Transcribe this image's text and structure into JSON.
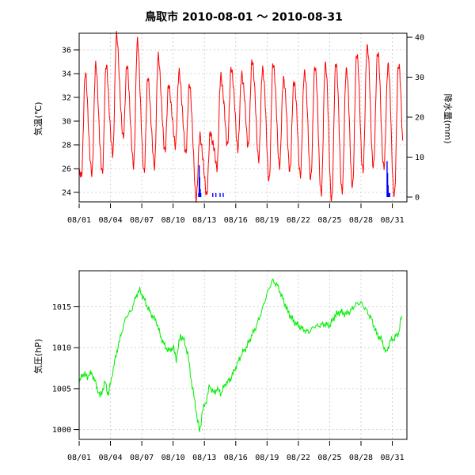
{
  "title": "鳥取市 2010-08-01 ～ 2010-08-31",
  "colors": {
    "temperature": "#ff0000",
    "precipitation": "#0000ff",
    "pressure": "#00ee00",
    "grid": "#c8c8c8"
  },
  "chart_data": [
    {
      "type": "line",
      "ylabel": "気温(℃)",
      "y2label": "降水量(mm)",
      "ylim": [
        23.2,
        37.4
      ],
      "yticks": [
        24,
        26,
        28,
        30,
        32,
        34,
        36
      ],
      "y2lim": [
        -1.2,
        41
      ],
      "y2ticks": [
        0,
        10,
        20,
        30,
        40
      ],
      "xlim": [
        0,
        31.4
      ],
      "xticks": [
        0,
        3,
        6,
        9,
        12,
        15,
        18,
        21,
        24,
        27,
        30
      ],
      "xticklabels": [
        "08/01",
        "08/04",
        "08/07",
        "08/10",
        "08/13",
        "08/16",
        "08/19",
        "08/22",
        "08/25",
        "08/28",
        "08/31"
      ],
      "grid": true,
      "series": [
        {
          "key": "temperature",
          "daily_min": [
            25.3,
            25.5,
            25.6,
            27.2,
            28.7,
            26.3,
            25.8,
            26.3,
            27.6,
            28.1,
            27.5,
            23.7,
            24.0,
            26.3,
            28.2,
            27.9,
            28.1,
            27.0,
            25.2,
            26.4,
            26.0,
            25.6,
            25.3,
            24.0,
            23.4,
            24.1,
            24.5,
            25.8,
            26.1,
            26.0,
            23.6,
            26.1
          ],
          "daily_max": [
            33.8,
            34.5,
            34.5,
            37.0,
            34.5,
            36.5,
            33.5,
            35.3,
            32.9,
            34.0,
            33.0,
            28.7,
            29.0,
            33.8,
            34.5,
            34.0,
            35.2,
            34.5,
            35.0,
            33.7,
            33.5,
            34.3,
            34.8,
            35.0,
            35.1,
            34.5,
            35.8,
            36.4,
            35.9,
            34.8,
            34.8,
            26.1
          ]
        },
        {
          "key": "precipitation",
          "values": [
            [
              11.45,
              1
            ],
            [
              11.5,
              8
            ],
            [
              11.55,
              5
            ],
            [
              11.6,
              2
            ],
            [
              11.65,
              1
            ],
            [
              12.8,
              1
            ],
            [
              13.1,
              1
            ],
            [
              13.5,
              1
            ],
            [
              13.8,
              1
            ],
            [
              29.5,
              9
            ],
            [
              29.55,
              6
            ],
            [
              29.6,
              3
            ],
            [
              29.65,
              1
            ],
            [
              29.7,
              1
            ],
            [
              29.75,
              1
            ]
          ]
        }
      ]
    },
    {
      "type": "line",
      "ylabel": "気圧(hP)",
      "ylim": [
        998.8,
        1019.4
      ],
      "yticks": [
        1000,
        1005,
        1010,
        1015
      ],
      "xlim": [
        0,
        31.4
      ],
      "xticks": [
        0,
        3,
        6,
        9,
        12,
        15,
        18,
        21,
        24,
        27,
        30
      ],
      "xticklabels": [
        "08/01",
        "08/04",
        "08/07",
        "08/10",
        "08/13",
        "08/16",
        "08/19",
        "08/22",
        "08/25",
        "08/28",
        "08/31"
      ],
      "grid": true,
      "series": [
        {
          "key": "pressure",
          "values": [
            [
              0,
              1005.6
            ],
            [
              0.3,
              1006.8
            ],
            [
              0.8,
              1006.5
            ],
            [
              1.2,
              1006.9
            ],
            [
              1.6,
              1005.6
            ],
            [
              2.0,
              1004.0
            ],
            [
              2.5,
              1005.8
            ],
            [
              2.8,
              1004.2
            ],
            [
              3.2,
              1007.0
            ],
            [
              3.6,
              1009.5
            ],
            [
              4.0,
              1011.5
            ],
            [
              4.5,
              1013.8
            ],
            [
              5.0,
              1014.5
            ],
            [
              5.5,
              1016.5
            ],
            [
              5.8,
              1017.0
            ],
            [
              6.2,
              1016.0
            ],
            [
              6.6,
              1014.8
            ],
            [
              7.0,
              1013.9
            ],
            [
              7.4,
              1013.2
            ],
            [
              7.8,
              1011.4
            ],
            [
              8.2,
              1010.2
            ],
            [
              8.6,
              1009.6
            ],
            [
              9.0,
              1010.1
            ],
            [
              9.3,
              1008.6
            ],
            [
              9.7,
              1011.5
            ],
            [
              10.0,
              1011.0
            ],
            [
              10.4,
              1009.3
            ],
            [
              10.7,
              1006.4
            ],
            [
              11.0,
              1004.0
            ],
            [
              11.3,
              1001.5
            ],
            [
              11.55,
              999.7
            ],
            [
              11.8,
              1002.2
            ],
            [
              12.2,
              1003.6
            ],
            [
              12.5,
              1005.4
            ],
            [
              12.9,
              1004.4
            ],
            [
              13.2,
              1005.0
            ],
            [
              13.6,
              1004.4
            ],
            [
              14.0,
              1005.6
            ],
            [
              14.4,
              1006.0
            ],
            [
              14.8,
              1007.0
            ],
            [
              15.2,
              1008.2
            ],
            [
              15.6,
              1009.3
            ],
            [
              16.0,
              1010.0
            ],
            [
              16.5,
              1011.4
            ],
            [
              17.0,
              1012.7
            ],
            [
              17.5,
              1014.5
            ],
            [
              18.0,
              1016.6
            ],
            [
              18.5,
              1018.2
            ],
            [
              19.0,
              1017.6
            ],
            [
              19.5,
              1016.0
            ],
            [
              20.0,
              1014.4
            ],
            [
              20.5,
              1013.3
            ],
            [
              21.0,
              1012.7
            ],
            [
              21.5,
              1012.2
            ],
            [
              22.0,
              1011.9
            ],
            [
              22.5,
              1012.6
            ],
            [
              23.0,
              1012.7
            ],
            [
              23.5,
              1012.9
            ],
            [
              24.0,
              1012.7
            ],
            [
              24.5,
              1013.9
            ],
            [
              25.0,
              1014.4
            ],
            [
              25.5,
              1014.1
            ],
            [
              26.0,
              1014.5
            ],
            [
              26.5,
              1015.3
            ],
            [
              27.0,
              1015.5
            ],
            [
              27.5,
              1014.6
            ],
            [
              28.0,
              1013.5
            ],
            [
              28.5,
              1011.7
            ],
            [
              29.0,
              1010.9
            ],
            [
              29.4,
              1009.3
            ],
            [
              29.8,
              1010.8
            ],
            [
              30.2,
              1011.2
            ],
            [
              30.6,
              1011.8
            ],
            [
              30.9,
              1013.9
            ]
          ]
        }
      ]
    }
  ]
}
